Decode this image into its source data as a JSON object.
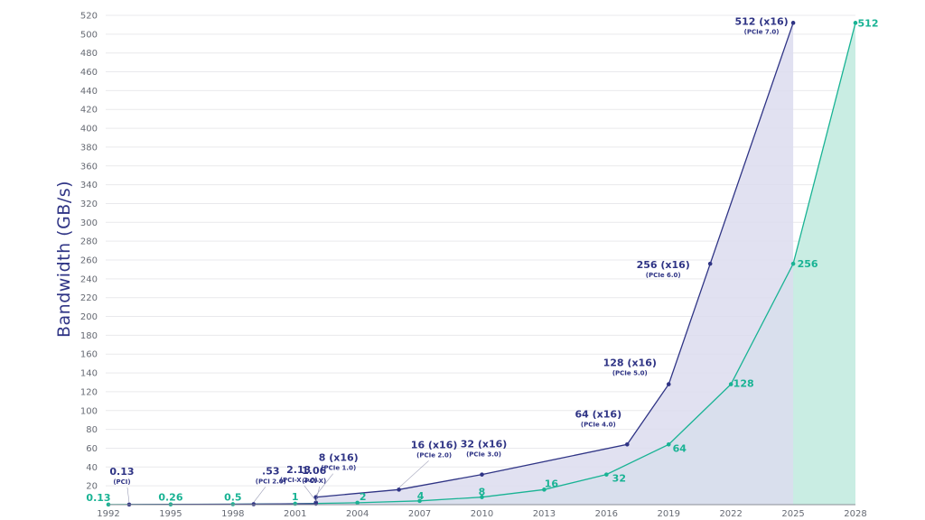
{
  "chart_data": {
    "type": "line",
    "ylabel": "Bandwidth (GB/s)",
    "xlabel": "",
    "title": "",
    "xlim": [
      1992,
      2028
    ],
    "ylim": [
      0,
      520
    ],
    "x_ticks": [
      1992,
      1995,
      1998,
      2001,
      2004,
      2007,
      2010,
      2013,
      2016,
      2019,
      2022,
      2025,
      2028
    ],
    "y_ticks": [
      20,
      40,
      60,
      80,
      100,
      120,
      140,
      160,
      180,
      200,
      220,
      240,
      260,
      280,
      300,
      320,
      340,
      360,
      380,
      400,
      420,
      440,
      460,
      480,
      500,
      520
    ],
    "grid": true,
    "colors": {
      "navy": "#2f3485",
      "teal": "#19b394",
      "navy_fill": "#dcdcee",
      "teal_fill": "#c9ede3"
    },
    "series": [
      {
        "color": "navy",
        "points": [
          {
            "x": 1993,
            "y": 0.13,
            "label": "0.13",
            "sub": "(PCI)"
          },
          {
            "x": 1999,
            "y": 0.53,
            "label": ".53",
            "sub": "(PCI 2.0)"
          },
          {
            "x": 2002,
            "y": 1.06,
            "label": "1.06",
            "sub": "(PCI-X)"
          },
          {
            "x": 2002,
            "y": 2.13,
            "label": "2.13",
            "sub": "(PCI-X 2.0)"
          },
          {
            "x": 2002,
            "y": 8,
            "label": "8 (x16)",
            "sub": "(PCIe 1.0)"
          },
          {
            "x": 2006,
            "y": 16,
            "label": "16 (x16)",
            "sub": "(PCIe 2.0)"
          },
          {
            "x": 2010,
            "y": 32,
            "label": "32 (x16)",
            "sub": "(PCIe 3.0)"
          },
          {
            "x": 2017,
            "y": 64,
            "label": "64 (x16)",
            "sub": "(PCIe 4.0)"
          },
          {
            "x": 2019,
            "y": 128,
            "label": "128 (x16)",
            "sub": "(PCIe 5.0)"
          },
          {
            "x": 2021,
            "y": 256,
            "label": "256 (x16)",
            "sub": "(PCIe 6.0)"
          },
          {
            "x": 2025,
            "y": 512,
            "label": "512 (x16)",
            "sub": "(PCIe 7.0)"
          }
        ]
      },
      {
        "color": "teal",
        "points": [
          {
            "x": 1992,
            "y": 0.13,
            "label": "0.13"
          },
          {
            "x": 1995,
            "y": 0.26,
            "label": "0.26"
          },
          {
            "x": 1998,
            "y": 0.5,
            "label": "0.5"
          },
          {
            "x": 2001,
            "y": 1,
            "label": "1"
          },
          {
            "x": 2004,
            "y": 2,
            "label": "2"
          },
          {
            "x": 2007,
            "y": 4,
            "label": "4"
          },
          {
            "x": 2010,
            "y": 8,
            "label": "8"
          },
          {
            "x": 2013,
            "y": 16,
            "label": "16"
          },
          {
            "x": 2016,
            "y": 32,
            "label": "32"
          },
          {
            "x": 2019,
            "y": 64,
            "label": "64"
          },
          {
            "x": 2022,
            "y": 128,
            "label": "128"
          },
          {
            "x": 2025,
            "y": 256,
            "label": "256"
          },
          {
            "x": 2028,
            "y": 512,
            "label": "512"
          }
        ]
      }
    ]
  }
}
